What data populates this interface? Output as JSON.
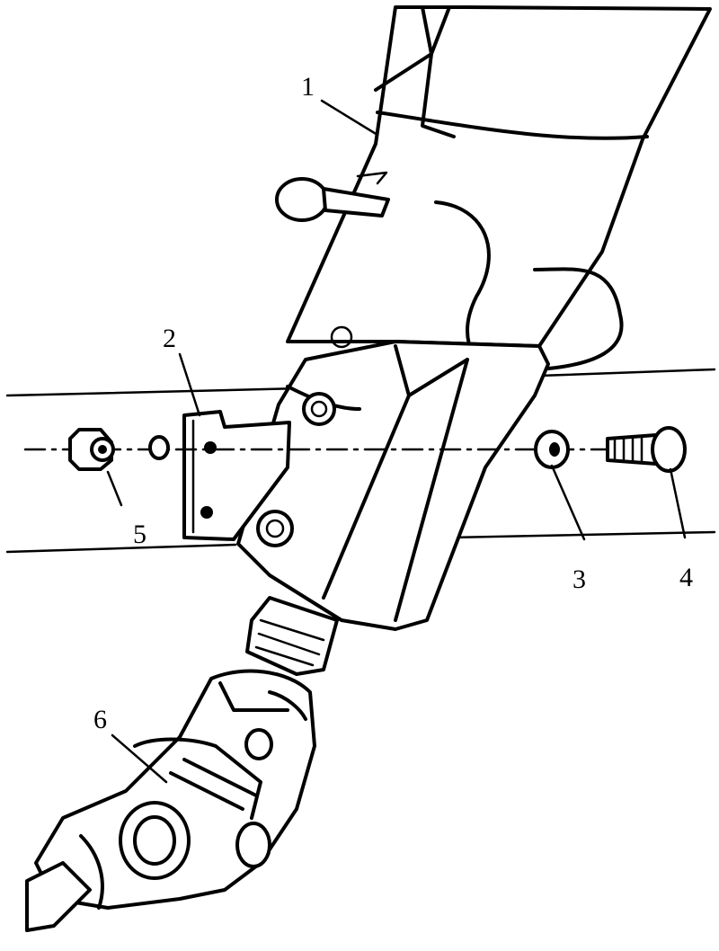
{
  "callouts": {
    "c1": "1",
    "c2": "2",
    "c3": "3",
    "c4": "4",
    "c5": "5",
    "c6": "6"
  },
  "icons": [
    "steering-column-icon",
    "mounting-bracket-icon",
    "washer-icon",
    "bolt-icon",
    "nut-icon",
    "universal-joint-icon"
  ]
}
